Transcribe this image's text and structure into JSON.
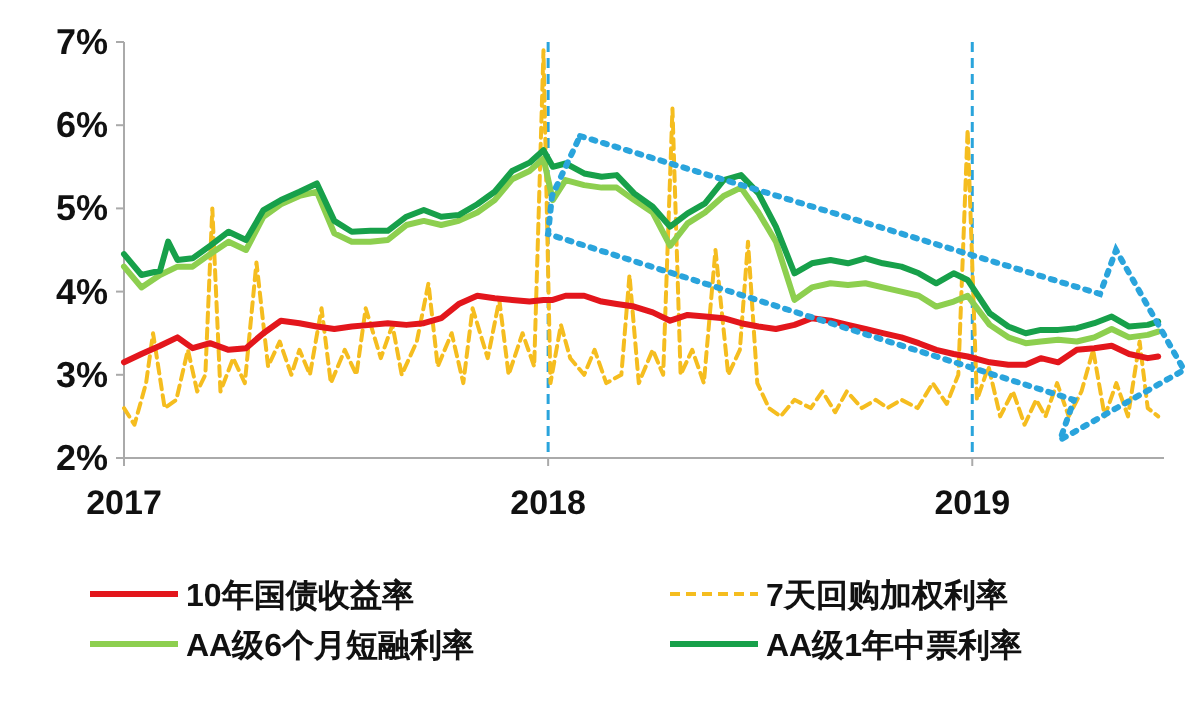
{
  "chart_data": {
    "type": "line",
    "xlim": [
      "2017-01-01",
      "2019-06-15"
    ],
    "xticks": [
      {
        "value": "2017-01-01",
        "label": "2017"
      },
      {
        "value": "2018-01-01",
        "label": "2018"
      },
      {
        "value": "2019-01-01",
        "label": "2019"
      }
    ],
    "ylim": [
      2,
      7
    ],
    "yticks": [
      {
        "value": 2,
        "label": "2%"
      },
      {
        "value": 3,
        "label": "3%"
      },
      {
        "value": 4,
        "label": "4%"
      },
      {
        "value": 5,
        "label": "5%"
      },
      {
        "value": 6,
        "label": "6%"
      },
      {
        "value": 7,
        "label": "7%"
      }
    ],
    "grid": false,
    "legend": "bottom",
    "ref_lines": [
      {
        "axis": "x",
        "value": "2018-01-01",
        "color": "#2aa4dc",
        "line_style": "dashed"
      },
      {
        "axis": "x",
        "value": "2019-01-01",
        "color": "#2aa4dc",
        "line_style": "dashed"
      }
    ],
    "series": [
      {
        "name": "10年国债收益率",
        "color": "#e3161c",
        "line_style": "solid",
        "x": [
          "2017-01-01",
          "2017-01-16",
          "2017-02-01",
          "2017-02-16",
          "2017-03-01",
          "2017-03-16",
          "2017-04-01",
          "2017-04-16",
          "2017-05-01",
          "2017-05-16",
          "2017-06-01",
          "2017-06-16",
          "2017-07-01",
          "2017-07-16",
          "2017-08-01",
          "2017-08-16",
          "2017-09-01",
          "2017-09-16",
          "2017-10-01",
          "2017-10-16",
          "2017-11-01",
          "2017-11-16",
          "2017-12-01",
          "2017-12-16",
          "2017-12-28",
          "2018-01-05",
          "2018-01-16",
          "2018-02-01",
          "2018-02-16",
          "2018-03-01",
          "2018-03-16",
          "2018-04-01",
          "2018-04-16",
          "2018-05-01",
          "2018-05-16",
          "2018-06-01",
          "2018-06-16",
          "2018-07-01",
          "2018-07-16",
          "2018-08-01",
          "2018-08-16",
          "2018-09-01",
          "2018-09-16",
          "2018-10-01",
          "2018-10-16",
          "2018-11-01",
          "2018-11-16",
          "2018-12-01",
          "2018-12-16",
          "2018-12-28",
          "2019-01-16",
          "2019-02-01",
          "2019-02-16",
          "2019-03-01",
          "2019-03-16",
          "2019-04-01",
          "2019-04-16",
          "2019-05-01",
          "2019-05-16",
          "2019-06-01",
          "2019-06-10"
        ],
        "values": [
          3.15,
          3.25,
          3.35,
          3.45,
          3.32,
          3.38,
          3.3,
          3.32,
          3.5,
          3.65,
          3.62,
          3.58,
          3.55,
          3.58,
          3.6,
          3.62,
          3.6,
          3.62,
          3.68,
          3.85,
          3.95,
          3.92,
          3.9,
          3.88,
          3.9,
          3.9,
          3.95,
          3.95,
          3.88,
          3.85,
          3.82,
          3.75,
          3.65,
          3.72,
          3.7,
          3.68,
          3.62,
          3.58,
          3.55,
          3.6,
          3.68,
          3.65,
          3.6,
          3.55,
          3.5,
          3.45,
          3.38,
          3.3,
          3.25,
          3.22,
          3.15,
          3.12,
          3.12,
          3.2,
          3.15,
          3.3,
          3.32,
          3.35,
          3.25,
          3.2,
          3.22
        ]
      },
      {
        "name": "7天回购加权利率",
        "color": "#f5bd1f",
        "line_style": "dashed",
        "x": [
          "2017-01-01",
          "2017-01-10",
          "2017-01-20",
          "2017-01-26",
          "2017-02-05",
          "2017-02-15",
          "2017-02-25",
          "2017-03-05",
          "2017-03-12",
          "2017-03-18",
          "2017-03-25",
          "2017-04-05",
          "2017-04-15",
          "2017-04-25",
          "2017-05-05",
          "2017-05-15",
          "2017-05-25",
          "2017-06-01",
          "2017-06-10",
          "2017-06-20",
          "2017-06-28",
          "2017-07-10",
          "2017-07-20",
          "2017-07-28",
          "2017-08-10",
          "2017-08-20",
          "2017-08-28",
          "2017-09-10",
          "2017-09-20",
          "2017-09-28",
          "2017-10-10",
          "2017-10-20",
          "2017-10-28",
          "2017-11-10",
          "2017-11-20",
          "2017-11-28",
          "2017-12-10",
          "2017-12-20",
          "2017-12-28",
          "2018-01-03",
          "2018-01-12",
          "2018-01-20",
          "2018-02-01",
          "2018-02-10",
          "2018-02-20",
          "2018-03-05",
          "2018-03-12",
          "2018-03-20",
          "2018-04-01",
          "2018-04-10",
          "2018-04-18",
          "2018-04-25",
          "2018-05-05",
          "2018-05-15",
          "2018-05-25",
          "2018-06-05",
          "2018-06-15",
          "2018-06-22",
          "2018-06-30",
          "2018-07-10",
          "2018-07-20",
          "2018-08-01",
          "2018-08-15",
          "2018-08-25",
          "2018-09-05",
          "2018-09-15",
          "2018-09-28",
          "2018-10-10",
          "2018-10-20",
          "2018-11-01",
          "2018-11-15",
          "2018-11-28",
          "2018-12-10",
          "2018-12-20",
          "2018-12-28",
          "2019-01-05",
          "2019-01-15",
          "2019-01-25",
          "2019-02-05",
          "2019-02-15",
          "2019-02-25",
          "2019-03-05",
          "2019-03-15",
          "2019-03-25",
          "2019-04-05",
          "2019-04-15",
          "2019-04-25",
          "2019-05-05",
          "2019-05-15",
          "2019-05-25",
          "2019-06-01",
          "2019-06-10"
        ],
        "values": [
          2.6,
          2.4,
          2.9,
          3.5,
          2.6,
          2.7,
          3.3,
          2.8,
          3.0,
          5.0,
          2.8,
          3.2,
          2.9,
          4.35,
          3.1,
          3.4,
          3.0,
          3.3,
          3.0,
          3.8,
          2.9,
          3.3,
          3.0,
          3.8,
          3.2,
          3.6,
          3.0,
          3.4,
          4.1,
          3.1,
          3.5,
          2.9,
          3.8,
          3.2,
          3.9,
          3.0,
          3.5,
          3.1,
          6.9,
          2.9,
          3.6,
          3.2,
          3.0,
          3.3,
          2.9,
          3.0,
          4.2,
          2.9,
          3.3,
          3.0,
          6.2,
          3.0,
          3.3,
          2.9,
          4.5,
          3.0,
          3.3,
          4.6,
          2.9,
          2.6,
          2.5,
          2.7,
          2.6,
          2.8,
          2.55,
          2.8,
          2.6,
          2.7,
          2.6,
          2.7,
          2.6,
          2.9,
          2.65,
          3.0,
          5.95,
          2.7,
          3.1,
          2.5,
          2.8,
          2.4,
          2.7,
          2.5,
          2.9,
          2.5,
          2.8,
          3.3,
          2.5,
          2.9,
          2.5,
          3.4,
          2.6,
          2.5
        ]
      },
      {
        "name": "AA级6个月短融利率",
        "color": "#8dcf4f",
        "line_style": "solid",
        "x": [
          "2017-01-01",
          "2017-01-16",
          "2017-02-01",
          "2017-02-16",
          "2017-03-01",
          "2017-03-16",
          "2017-04-01",
          "2017-04-16",
          "2017-05-01",
          "2017-05-16",
          "2017-06-01",
          "2017-06-16",
          "2017-07-01",
          "2017-07-16",
          "2017-08-01",
          "2017-08-16",
          "2017-09-01",
          "2017-09-16",
          "2017-10-01",
          "2017-10-16",
          "2017-11-01",
          "2017-11-16",
          "2017-12-01",
          "2017-12-16",
          "2017-12-28",
          "2018-01-05",
          "2018-01-16",
          "2018-02-01",
          "2018-02-16",
          "2018-03-01",
          "2018-03-16",
          "2018-04-01",
          "2018-04-16",
          "2018-05-01",
          "2018-05-16",
          "2018-06-01",
          "2018-06-16",
          "2018-07-01",
          "2018-07-16",
          "2018-08-01",
          "2018-08-16",
          "2018-09-01",
          "2018-09-16",
          "2018-10-01",
          "2018-10-16",
          "2018-11-01",
          "2018-11-16",
          "2018-12-01",
          "2018-12-16",
          "2018-12-28",
          "2019-01-16",
          "2019-02-01",
          "2019-02-16",
          "2019-03-01",
          "2019-03-16",
          "2019-04-01",
          "2019-04-16",
          "2019-05-01",
          "2019-05-16",
          "2019-06-01",
          "2019-06-10"
        ],
        "values": [
          4.3,
          4.05,
          4.2,
          4.3,
          4.3,
          4.45,
          4.6,
          4.5,
          4.9,
          5.05,
          5.15,
          5.2,
          4.7,
          4.6,
          4.6,
          4.62,
          4.8,
          4.85,
          4.8,
          4.85,
          4.95,
          5.1,
          5.35,
          5.45,
          5.6,
          5.1,
          5.34,
          5.28,
          5.25,
          5.25,
          5.1,
          4.95,
          4.55,
          4.82,
          4.95,
          5.15,
          5.25,
          4.95,
          4.6,
          3.9,
          4.05,
          4.1,
          4.08,
          4.1,
          4.05,
          4.0,
          3.95,
          3.82,
          3.88,
          3.95,
          3.6,
          3.45,
          3.38,
          3.4,
          3.42,
          3.4,
          3.45,
          3.55,
          3.45,
          3.48,
          3.52
        ]
      },
      {
        "name": "AA级1年中票利率",
        "color": "#17a04a",
        "line_style": "solid",
        "x": [
          "2017-01-01",
          "2017-01-16",
          "2017-02-01",
          "2017-02-08",
          "2017-02-16",
          "2017-03-01",
          "2017-03-16",
          "2017-04-01",
          "2017-04-16",
          "2017-05-01",
          "2017-05-16",
          "2017-06-01",
          "2017-06-16",
          "2017-07-01",
          "2017-07-16",
          "2017-08-01",
          "2017-08-16",
          "2017-09-01",
          "2017-09-16",
          "2017-10-01",
          "2017-10-16",
          "2017-11-01",
          "2017-11-16",
          "2017-12-01",
          "2017-12-16",
          "2017-12-28",
          "2018-01-05",
          "2018-01-16",
          "2018-02-01",
          "2018-02-16",
          "2018-03-01",
          "2018-03-16",
          "2018-04-01",
          "2018-04-16",
          "2018-05-01",
          "2018-05-16",
          "2018-06-01",
          "2018-06-16",
          "2018-07-01",
          "2018-07-16",
          "2018-08-01",
          "2018-08-16",
          "2018-09-01",
          "2018-09-16",
          "2018-10-01",
          "2018-10-16",
          "2018-11-01",
          "2018-11-16",
          "2018-12-01",
          "2018-12-16",
          "2018-12-28",
          "2019-01-16",
          "2019-02-01",
          "2019-02-16",
          "2019-03-01",
          "2019-03-16",
          "2019-04-01",
          "2019-04-16",
          "2019-05-01",
          "2019-05-16",
          "2019-06-01",
          "2019-06-10"
        ],
        "values": [
          4.45,
          4.2,
          4.25,
          4.6,
          4.38,
          4.4,
          4.55,
          4.72,
          4.62,
          4.98,
          5.1,
          5.2,
          5.3,
          4.85,
          4.72,
          4.73,
          4.73,
          4.9,
          4.98,
          4.9,
          4.92,
          5.05,
          5.2,
          5.45,
          5.55,
          5.7,
          5.5,
          5.54,
          5.42,
          5.38,
          5.4,
          5.18,
          5.02,
          4.78,
          4.94,
          5.06,
          5.34,
          5.4,
          5.18,
          4.78,
          4.22,
          4.34,
          4.38,
          4.34,
          4.4,
          4.34,
          4.3,
          4.22,
          4.1,
          4.22,
          4.14,
          3.74,
          3.58,
          3.5,
          3.54,
          3.54,
          3.56,
          3.62,
          3.7,
          3.58,
          3.6,
          3.64
        ]
      }
    ]
  }
}
